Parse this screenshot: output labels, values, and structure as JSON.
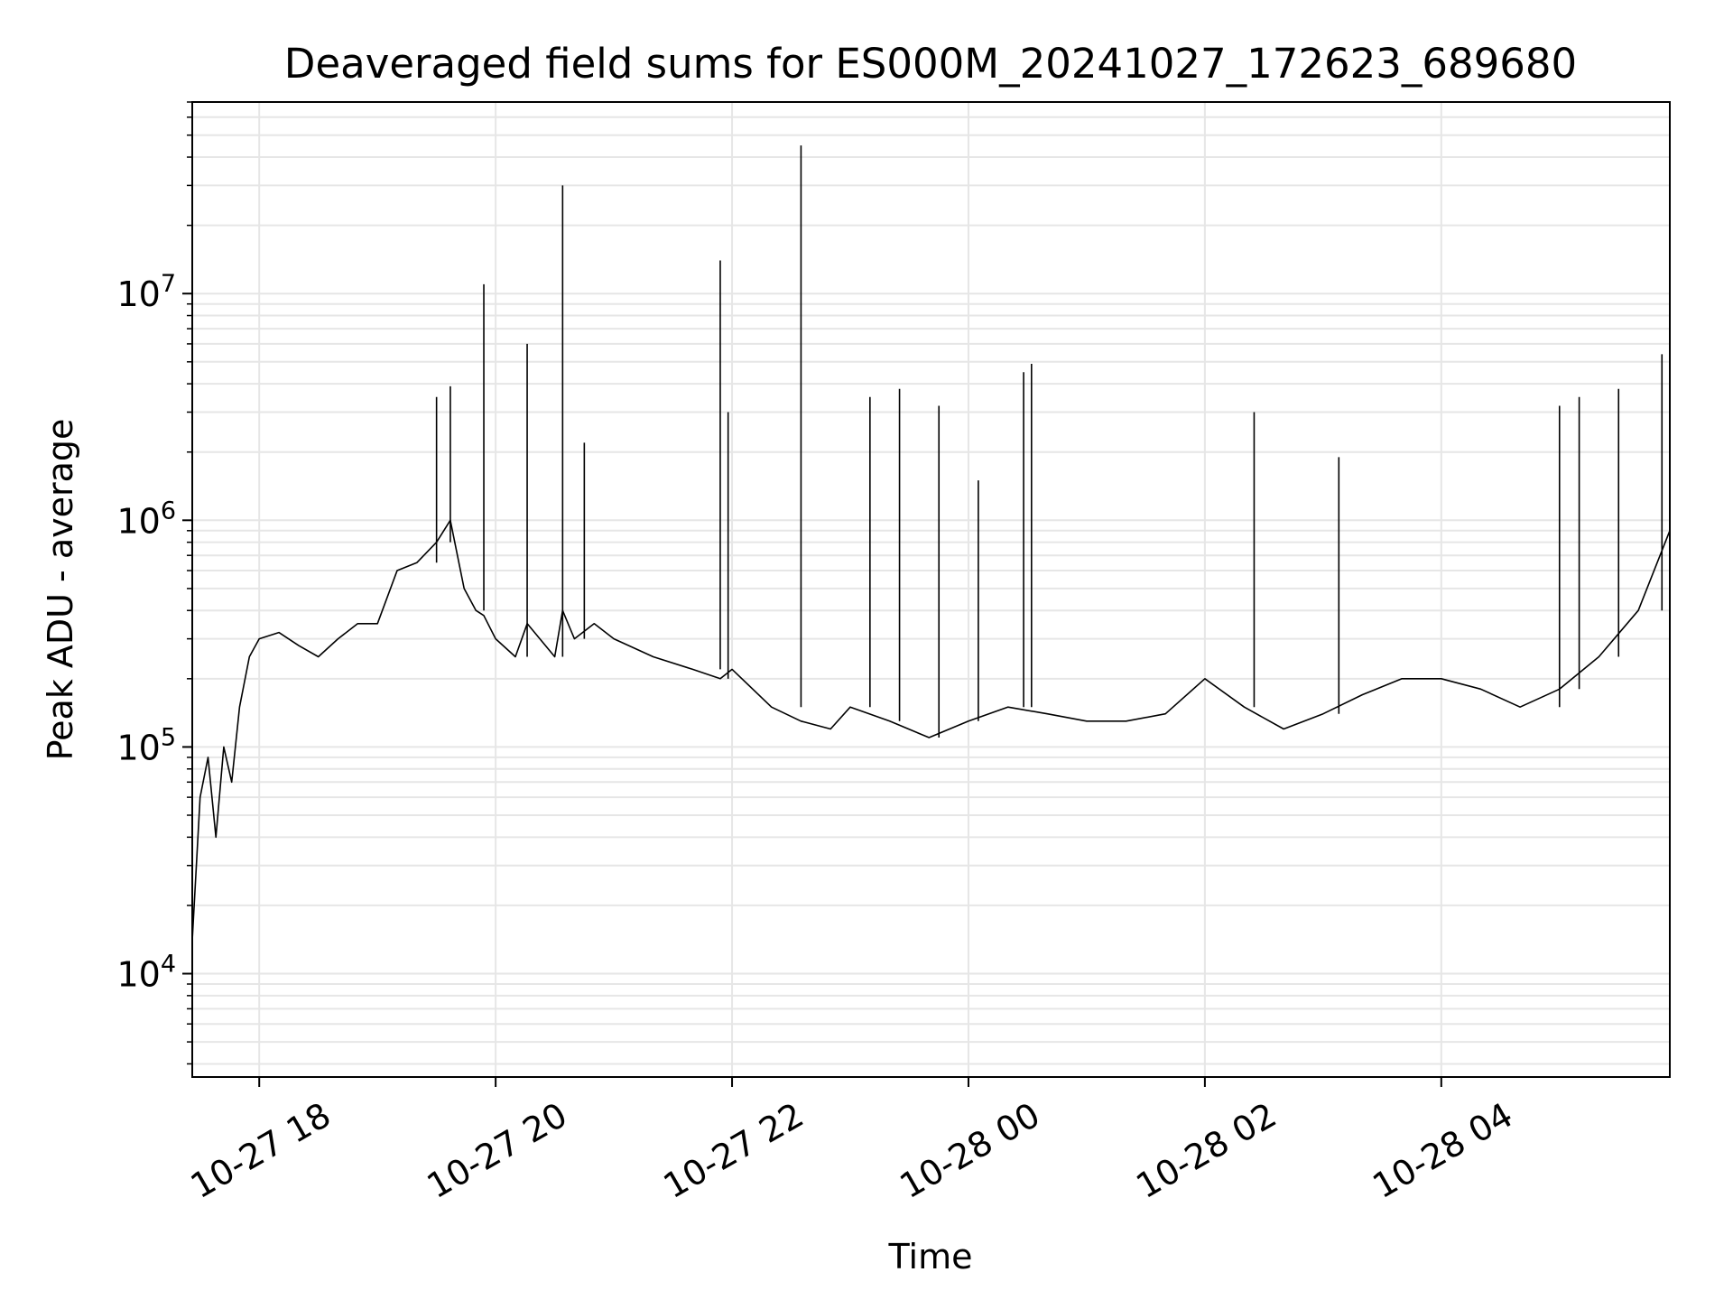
{
  "chart_data": {
    "type": "line",
    "title": "Deaveraged field sums for ES000M_20241027_172623_689680",
    "xlabel": "Time",
    "ylabel": "Peak ADU - average",
    "yscale": "log",
    "grid": true,
    "xlim": [
      "2024-10-27 17:26",
      "2024-10-28 05:56"
    ],
    "ylim": [
      3500,
      70000000
    ],
    "x_ticks": [
      {
        "value": "2024-10-27 18:00",
        "label": "10-27 18"
      },
      {
        "value": "2024-10-27 20:00",
        "label": "10-27 20"
      },
      {
        "value": "2024-10-27 22:00",
        "label": "10-27 22"
      },
      {
        "value": "2024-10-28 00:00",
        "label": "10-28 00"
      },
      {
        "value": "2024-10-28 02:00",
        "label": "10-28 02"
      },
      {
        "value": "2024-10-28 04:00",
        "label": "10-28 04"
      }
    ],
    "y_ticks": [
      {
        "value": 10000,
        "base": "10",
        "exp": "4"
      },
      {
        "value": 100000,
        "base": "10",
        "exp": "5"
      },
      {
        "value": 1000000,
        "base": "10",
        "exp": "6"
      },
      {
        "value": 10000000,
        "base": "10",
        "exp": "7"
      }
    ],
    "series": [
      {
        "color": "#000000",
        "x": [
          "2024-10-27 17:26",
          "2024-10-27 17:30",
          "2024-10-27 17:34",
          "2024-10-27 17:38",
          "2024-10-27 17:42",
          "2024-10-27 17:46",
          "2024-10-27 17:50",
          "2024-10-27 17:55",
          "2024-10-27 18:00",
          "2024-10-27 18:10",
          "2024-10-27 18:20",
          "2024-10-27 18:30",
          "2024-10-27 18:40",
          "2024-10-27 18:50",
          "2024-10-27 19:00",
          "2024-10-27 19:10",
          "2024-10-27 19:20",
          "2024-10-27 19:30",
          "2024-10-27 19:37",
          "2024-10-27 19:44",
          "2024-10-27 19:50",
          "2024-10-27 19:54",
          "2024-10-27 20:00",
          "2024-10-27 20:10",
          "2024-10-27 20:16",
          "2024-10-27 20:30",
          "2024-10-27 20:34",
          "2024-10-27 20:40",
          "2024-10-27 20:50",
          "2024-10-27 21:00",
          "2024-10-27 21:20",
          "2024-10-27 21:40",
          "2024-10-27 21:54",
          "2024-10-27 22:00",
          "2024-10-27 22:20",
          "2024-10-27 22:35",
          "2024-10-27 22:50",
          "2024-10-27 23:00",
          "2024-10-27 23:20",
          "2024-10-27 23:40",
          "2024-10-28 00:00",
          "2024-10-28 00:20",
          "2024-10-28 00:40",
          "2024-10-28 01:00",
          "2024-10-28 01:20",
          "2024-10-28 01:40",
          "2024-10-28 02:00",
          "2024-10-28 02:20",
          "2024-10-28 02:40",
          "2024-10-28 03:00",
          "2024-10-28 03:20",
          "2024-10-28 03:40",
          "2024-10-28 04:00",
          "2024-10-28 04:20",
          "2024-10-28 04:40",
          "2024-10-28 05:00",
          "2024-10-28 05:20",
          "2024-10-28 05:40",
          "2024-10-28 05:56"
        ],
        "y": [
          14000,
          60000,
          90000,
          40000,
          100000,
          70000,
          150000,
          250000,
          300000,
          320000,
          280000,
          250000,
          300000,
          350000,
          350000,
          600000,
          650000,
          800000,
          1000000,
          500000,
          400000,
          380000,
          300000,
          250000,
          350000,
          250000,
          400000,
          300000,
          350000,
          300000,
          250000,
          220000,
          200000,
          220000,
          150000,
          130000,
          120000,
          150000,
          130000,
          110000,
          130000,
          150000,
          140000,
          130000,
          130000,
          140000,
          200000,
          150000,
          120000,
          140000,
          170000,
          200000,
          200000,
          180000,
          150000,
          180000,
          250000,
          400000,
          900000
        ],
        "spikes": [
          {
            "x": "2024-10-27 19:54",
            "y": 11000000
          },
          {
            "x": "2024-10-27 20:16",
            "y": 6000000
          },
          {
            "x": "2024-10-27 20:34",
            "y": 30000000
          },
          {
            "x": "2024-10-27 21:54",
            "y": 14000000
          },
          {
            "x": "2024-10-27 22:35",
            "y": 45000000
          },
          {
            "x": "2024-10-27 19:30",
            "y": 3500000
          },
          {
            "x": "2024-10-27 19:37",
            "y": 3900000
          },
          {
            "x": "2024-10-27 20:45",
            "y": 2200000
          },
          {
            "x": "2024-10-27 21:58",
            "y": 3000000
          },
          {
            "x": "2024-10-27 23:10",
            "y": 3500000
          },
          {
            "x": "2024-10-27 23:25",
            "y": 3800000
          },
          {
            "x": "2024-10-27 23:45",
            "y": 3200000
          },
          {
            "x": "2024-10-28 00:05",
            "y": 1500000
          },
          {
            "x": "2024-10-28 00:28",
            "y": 4500000
          },
          {
            "x": "2024-10-28 00:32",
            "y": 4900000
          },
          {
            "x": "2024-10-28 02:25",
            "y": 3000000
          },
          {
            "x": "2024-10-28 03:08",
            "y": 1900000
          },
          {
            "x": "2024-10-28 05:00",
            "y": 3200000
          },
          {
            "x": "2024-10-28 05:10",
            "y": 3500000
          },
          {
            "x": "2024-10-28 05:30",
            "y": 3800000
          },
          {
            "x": "2024-10-28 05:52",
            "y": 5400000
          }
        ]
      }
    ]
  }
}
